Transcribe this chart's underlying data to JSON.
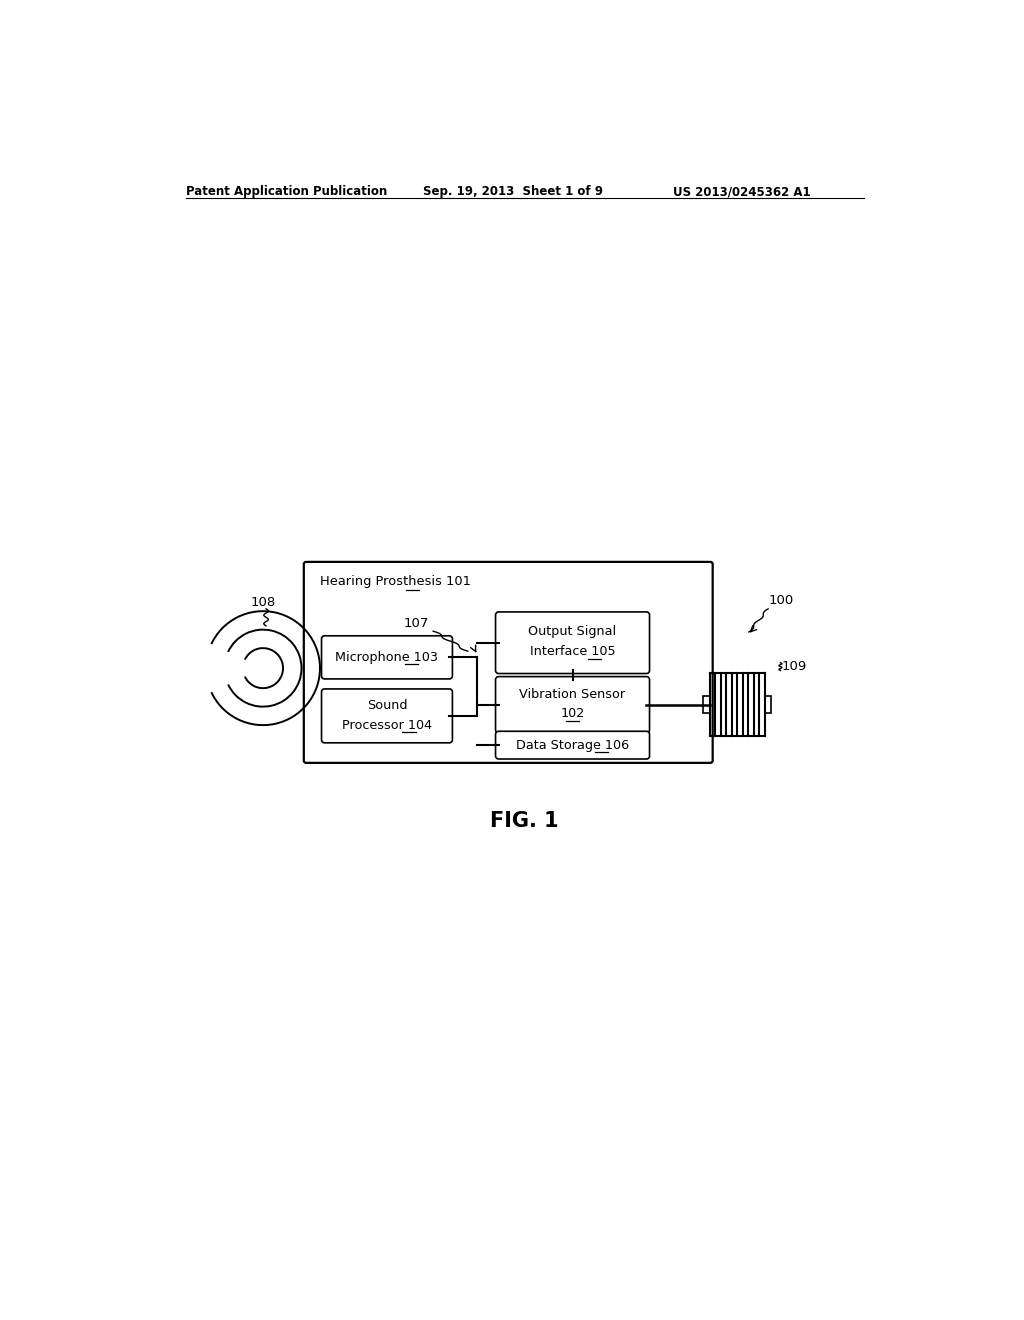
{
  "bg_color": "#ffffff",
  "header_left": "Patent Application Publication",
  "header_mid": "Sep. 19, 2013  Sheet 1 of 9",
  "header_right": "US 2013/0245362 A1",
  "fig_label": "FIG. 1",
  "outer_box_label_pre": "Hearing Prosthesis ",
  "outer_box_label_num": "101",
  "box_microphone_pre": "Microphone ",
  "box_microphone_num": "103",
  "box_sound_pre": "Sound\nProcessor ",
  "box_sound_num": "104",
  "box_output_line1": "Output Signal",
  "box_output_line2_pre": "Interface ",
  "box_output_line2_num": "105",
  "box_vibration_line1": "Vibration Sensor",
  "box_vibration_num": "102",
  "box_datastorage_pre": "Data Storage ",
  "box_datastorage_num": "106",
  "label_107": "107",
  "label_108": "108",
  "label_109": "109",
  "label_100": "100"
}
